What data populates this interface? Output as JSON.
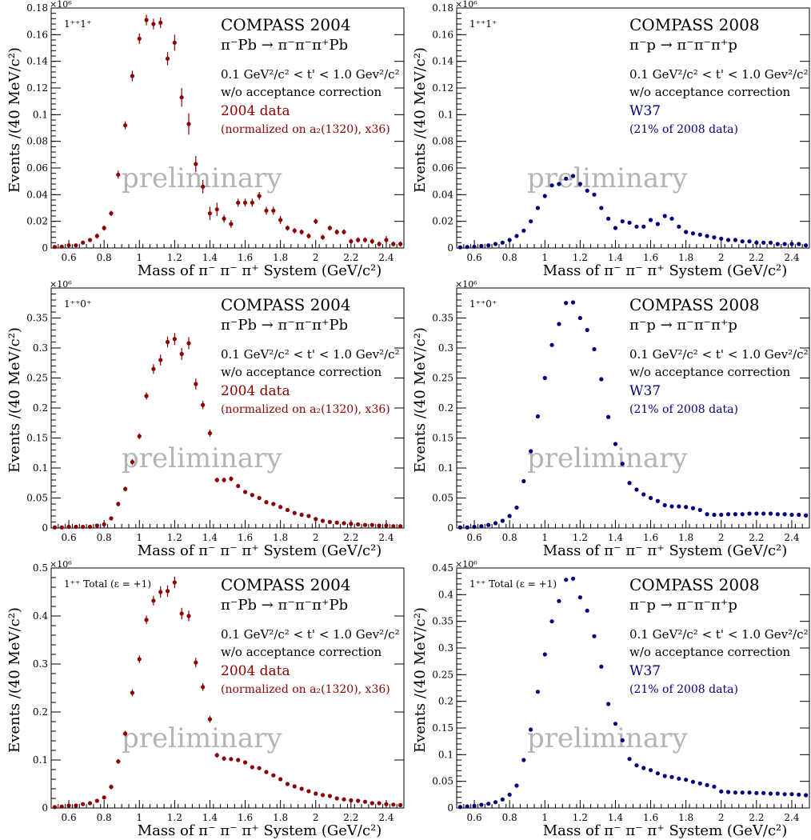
{
  "chart_data": [
    {
      "type": "scatter",
      "panel": "left-top",
      "experiment": "COMPASS 2004",
      "wave_label": "1⁺⁺1⁺",
      "reaction": "π⁻Pb → π⁻π⁻π⁺Pb",
      "cut": "0.1 GeV²/c² < t' < 1.0 Gev²/c²",
      "correction_note": "w/o acceptance correction",
      "dataset": "2004 data",
      "normalization_note": "(normalized on a₂(1320), x36)",
      "watermark": "preliminary",
      "xlabel": "Mass of π⁻ π⁻ π⁺ System (GeV/c²)",
      "ylabel": "Events /(40 MeV/c²)",
      "y_multiplier": "×10⁶",
      "xlim": [
        0.5,
        2.5
      ],
      "ylim": [
        0,
        0.18
      ],
      "xticks": [
        0.6,
        0.8,
        1,
        1.2,
        1.4,
        1.6,
        1.8,
        2,
        2.2,
        2.4
      ],
      "yticks": [
        0,
        0.02,
        0.04,
        0.06,
        0.08,
        0.1,
        0.12,
        0.14,
        0.16,
        0.18
      ],
      "color": "#8b0000",
      "x": [
        0.52,
        0.56,
        0.6,
        0.64,
        0.68,
        0.72,
        0.76,
        0.8,
        0.84,
        0.88,
        0.92,
        0.96,
        1.0,
        1.04,
        1.08,
        1.12,
        1.16,
        1.2,
        1.24,
        1.28,
        1.32,
        1.36,
        1.4,
        1.44,
        1.48,
        1.52,
        1.56,
        1.6,
        1.64,
        1.68,
        1.72,
        1.76,
        1.8,
        1.84,
        1.88,
        1.92,
        1.96,
        2.0,
        2.04,
        2.08,
        2.12,
        2.16,
        2.2,
        2.24,
        2.28,
        2.32,
        2.36,
        2.4,
        2.44,
        2.48
      ],
      "y": [
        0.0008,
        0.001,
        0.002,
        0.002,
        0.004,
        0.006,
        0.009,
        0.015,
        0.026,
        0.055,
        0.092,
        0.129,
        0.157,
        0.171,
        0.168,
        0.169,
        0.142,
        0.154,
        0.113,
        0.093,
        0.063,
        0.046,
        0.026,
        0.029,
        0.022,
        0.018,
        0.034,
        0.034,
        0.034,
        0.039,
        0.028,
        0.028,
        0.021,
        0.015,
        0.013,
        0.012,
        0.009,
        0.02,
        0.008,
        0.015,
        0.012,
        0.012,
        0.005,
        0.006,
        0.006,
        0.005,
        0.003,
        0.006,
        0.003,
        0.003
      ],
      "yerr": [
        0.0008,
        0.001,
        0.001,
        0.001,
        0.0015,
        0.0015,
        0.002,
        0.002,
        0.002,
        0.003,
        0.003,
        0.004,
        0.004,
        0.004,
        0.004,
        0.004,
        0.005,
        0.006,
        0.007,
        0.008,
        0.006,
        0.005,
        0.005,
        0.005,
        0.003,
        0.003,
        0.003,
        0.003,
        0.003,
        0.003,
        0.003,
        0.003,
        0.003,
        0.002,
        0.002,
        0.002,
        0.002,
        0.002,
        0.002,
        0.002,
        0.002,
        0.002,
        0.002,
        0.002,
        0.002,
        0.002,
        0.002,
        0.003,
        0.002,
        0.002
      ]
    },
    {
      "type": "scatter",
      "panel": "right-top",
      "experiment": "COMPASS 2008",
      "wave_label": "1⁺⁺1⁺",
      "reaction": "π⁻p → π⁻π⁻π⁺p",
      "cut": "0.1 GeV²/c² < t' < 1.0 Gev²/c²",
      "correction_note": "w/o acceptance correction",
      "dataset": "W37",
      "normalization_note": "(21% of 2008 data)",
      "watermark": "preliminary",
      "xlabel": "Mass of π⁻ π⁻ π⁺ System (GeV/c²)",
      "ylabel": "Events /(40 MeV/c²)",
      "y_multiplier": "×10⁶",
      "xlim": [
        0.5,
        2.5
      ],
      "ylim": [
        0,
        0.18
      ],
      "xticks": [
        0.6,
        0.8,
        1,
        1.2,
        1.4,
        1.6,
        1.8,
        2,
        2.2,
        2.4
      ],
      "yticks": [
        0,
        0.02,
        0.04,
        0.06,
        0.08,
        0.1,
        0.12,
        0.14,
        0.16,
        0.18
      ],
      "color": "#00007a",
      "x": [
        0.52,
        0.56,
        0.6,
        0.64,
        0.68,
        0.72,
        0.76,
        0.8,
        0.84,
        0.88,
        0.92,
        0.96,
        1.0,
        1.04,
        1.08,
        1.12,
        1.16,
        1.2,
        1.24,
        1.28,
        1.32,
        1.36,
        1.4,
        1.44,
        1.48,
        1.52,
        1.56,
        1.6,
        1.64,
        1.68,
        1.72,
        1.76,
        1.8,
        1.84,
        1.88,
        1.92,
        1.96,
        2.0,
        2.04,
        2.08,
        2.12,
        2.16,
        2.2,
        2.24,
        2.28,
        2.32,
        2.36,
        2.4,
        2.44,
        2.48
      ],
      "y": [
        0.0005,
        0.0008,
        0.001,
        0.0015,
        0.002,
        0.003,
        0.004,
        0.006,
        0.009,
        0.013,
        0.02,
        0.03,
        0.039,
        0.047,
        0.048,
        0.052,
        0.054,
        0.048,
        0.043,
        0.04,
        0.03,
        0.022,
        0.015,
        0.02,
        0.019,
        0.016,
        0.016,
        0.021,
        0.018,
        0.024,
        0.022,
        0.016,
        0.012,
        0.011,
        0.01,
        0.009,
        0.008,
        0.007,
        0.006,
        0.006,
        0.005,
        0.005,
        0.004,
        0.004,
        0.004,
        0.003,
        0.003,
        0.003,
        0.003,
        0.002
      ],
      "yerr": [
        0.0003,
        0.0003,
        0.0004,
        0.0004,
        0.0005,
        0.0005,
        0.0006,
        0.0006,
        0.0007,
        0.0008,
        0.0008,
        0.0009,
        0.001,
        0.001,
        0.001,
        0.001,
        0.001,
        0.001,
        0.001,
        0.001,
        0.001,
        0.001,
        0.001,
        0.001,
        0.001,
        0.001,
        0.001,
        0.001,
        0.001,
        0.001,
        0.001,
        0.001,
        0.001,
        0.001,
        0.001,
        0.001,
        0.001,
        0.001,
        0.001,
        0.001,
        0.001,
        0.001,
        0.001,
        0.001,
        0.001,
        0.001,
        0.001,
        0.001,
        0.001,
        0.001
      ]
    },
    {
      "type": "scatter",
      "panel": "left-middle",
      "experiment": "COMPASS 2004",
      "wave_label": "1⁺⁺0⁺",
      "reaction": "π⁻Pb → π⁻π⁻π⁺Pb",
      "cut": "0.1 GeV²/c² < t' < 1.0 Gev²/c²",
      "correction_note": "w/o acceptance correction",
      "dataset": "2004 data",
      "normalization_note": "(normalized on a₂(1320), x36)",
      "watermark": "preliminary",
      "xlabel": "Mass of π⁻ π⁻ π⁺ System (GeV/c²)",
      "ylabel": "Events /(40 MeV/c²)",
      "y_multiplier": "×10⁶",
      "xlim": [
        0.5,
        2.5
      ],
      "ylim": [
        0,
        0.4
      ],
      "xticks": [
        0.6,
        0.8,
        1,
        1.2,
        1.4,
        1.6,
        1.8,
        2,
        2.2,
        2.4
      ],
      "yticks": [
        0,
        0.05,
        0.1,
        0.15,
        0.2,
        0.25,
        0.3,
        0.35
      ],
      "color": "#8b0000",
      "x": [
        0.52,
        0.56,
        0.6,
        0.64,
        0.68,
        0.72,
        0.76,
        0.8,
        0.84,
        0.88,
        0.92,
        0.96,
        1.0,
        1.04,
        1.08,
        1.12,
        1.16,
        1.2,
        1.24,
        1.28,
        1.32,
        1.36,
        1.4,
        1.44,
        1.48,
        1.52,
        1.56,
        1.6,
        1.64,
        1.68,
        1.72,
        1.76,
        1.8,
        1.84,
        1.88,
        1.92,
        1.96,
        2.0,
        2.04,
        2.08,
        2.12,
        2.16,
        2.2,
        2.24,
        2.28,
        2.32,
        2.36,
        2.4,
        2.44,
        2.48
      ],
      "y": [
        0.001,
        0.001,
        0.002,
        0.002,
        0.002,
        0.002,
        0.004,
        0.006,
        0.016,
        0.04,
        0.065,
        0.11,
        0.153,
        0.22,
        0.265,
        0.28,
        0.31,
        0.315,
        0.29,
        0.308,
        0.24,
        0.205,
        0.158,
        0.08,
        0.08,
        0.082,
        0.07,
        0.06,
        0.055,
        0.05,
        0.043,
        0.04,
        0.035,
        0.03,
        0.025,
        0.022,
        0.02,
        0.015,
        0.012,
        0.01,
        0.009,
        0.008,
        0.007,
        0.006,
        0.005,
        0.005,
        0.004,
        0.004,
        0.003,
        0.003
      ],
      "yerr": [
        0.001,
        0.001,
        0.002,
        0.002,
        0.002,
        0.002,
        0.002,
        0.003,
        0.003,
        0.004,
        0.004,
        0.005,
        0.005,
        0.006,
        0.008,
        0.009,
        0.009,
        0.01,
        0.01,
        0.01,
        0.009,
        0.007,
        0.006,
        0.004,
        0.004,
        0.004,
        0.003,
        0.003,
        0.003,
        0.003,
        0.003,
        0.003,
        0.003,
        0.002,
        0.002,
        0.002,
        0.002,
        0.002,
        0.002,
        0.002,
        0.002,
        0.002,
        0.002,
        0.002,
        0.002,
        0.002,
        0.002,
        0.002,
        0.002,
        0.002
      ]
    },
    {
      "type": "scatter",
      "panel": "right-middle",
      "experiment": "COMPASS 2008",
      "wave_label": "1⁺⁺0⁺",
      "reaction": "π⁻p → π⁻π⁻π⁺p",
      "cut": "0.1 GeV²/c² < t' < 1.0 Gev²/c²",
      "correction_note": "w/o acceptance correction",
      "dataset": "W37",
      "normalization_note": "(21% of 2008 data)",
      "watermark": "preliminary",
      "xlabel": "Mass of π⁻ π⁻ π⁺ System (GeV/c²)",
      "ylabel": "Events /(40 MeV/c²)",
      "y_multiplier": "×10⁶",
      "xlim": [
        0.5,
        2.5
      ],
      "ylim": [
        0,
        0.4
      ],
      "xticks": [
        0.6,
        0.8,
        1,
        1.2,
        1.4,
        1.6,
        1.8,
        2,
        2.2,
        2.4
      ],
      "yticks": [
        0,
        0.05,
        0.1,
        0.15,
        0.2,
        0.25,
        0.3,
        0.35
      ],
      "color": "#00007a",
      "x": [
        0.52,
        0.56,
        0.6,
        0.64,
        0.68,
        0.72,
        0.76,
        0.8,
        0.84,
        0.88,
        0.92,
        0.96,
        1.0,
        1.04,
        1.08,
        1.12,
        1.16,
        1.2,
        1.24,
        1.28,
        1.32,
        1.36,
        1.4,
        1.44,
        1.48,
        1.52,
        1.56,
        1.6,
        1.64,
        1.68,
        1.72,
        1.76,
        1.8,
        1.84,
        1.88,
        1.92,
        1.96,
        2.0,
        2.04,
        2.08,
        2.12,
        2.16,
        2.2,
        2.24,
        2.28,
        2.32,
        2.36,
        2.4,
        2.44,
        2.48
      ],
      "y": [
        0.001,
        0.001,
        0.002,
        0.003,
        0.005,
        0.008,
        0.012,
        0.02,
        0.034,
        0.078,
        0.128,
        0.186,
        0.25,
        0.305,
        0.34,
        0.375,
        0.376,
        0.35,
        0.33,
        0.298,
        0.248,
        0.185,
        0.14,
        0.107,
        0.075,
        0.064,
        0.056,
        0.05,
        0.045,
        0.038,
        0.036,
        0.036,
        0.035,
        0.033,
        0.03,
        0.023,
        0.022,
        0.022,
        0.023,
        0.023,
        0.023,
        0.024,
        0.024,
        0.024,
        0.024,
        0.023,
        0.023,
        0.022,
        0.022,
        0.021
      ],
      "yerr": [
        0.0005,
        0.0005,
        0.0006,
        0.0007,
        0.0008,
        0.001,
        0.001,
        0.001,
        0.001,
        0.002,
        0.002,
        0.002,
        0.002,
        0.003,
        0.003,
        0.003,
        0.003,
        0.003,
        0.003,
        0.003,
        0.003,
        0.003,
        0.002,
        0.002,
        0.002,
        0.001,
        0.001,
        0.001,
        0.001,
        0.001,
        0.001,
        0.001,
        0.001,
        0.001,
        0.001,
        0.001,
        0.001,
        0.001,
        0.001,
        0.001,
        0.001,
        0.001,
        0.001,
        0.001,
        0.001,
        0.001,
        0.001,
        0.001,
        0.001,
        0.001
      ]
    },
    {
      "type": "scatter",
      "panel": "left-bottom",
      "experiment": "COMPASS 2004",
      "wave_label": "1⁺⁺ Total (ε = +1)",
      "reaction": "π⁻Pb → π⁻π⁻π⁺Pb",
      "cut": "0.1 GeV²/c² < t' < 1.0 Gev²/c²",
      "correction_note": "w/o acceptance correction",
      "dataset": "2004 data",
      "normalization_note": "(normalized on a₂(1320), x36)",
      "watermark": "preliminary",
      "xlabel": "Mass of π⁻ π⁻ π⁺ System (GeV/c²)",
      "ylabel": "Events /(40 MeV/c²)",
      "y_multiplier": "×10⁶",
      "xlim": [
        0.5,
        2.5
      ],
      "ylim": [
        0,
        0.5
      ],
      "xticks": [
        0.6,
        0.8,
        1,
        1.2,
        1.4,
        1.6,
        1.8,
        2,
        2.2,
        2.4
      ],
      "yticks": [
        0,
        0.1,
        0.2,
        0.3,
        0.4,
        0.5
      ],
      "color": "#8b0000",
      "x": [
        0.52,
        0.56,
        0.6,
        0.64,
        0.68,
        0.72,
        0.76,
        0.8,
        0.84,
        0.88,
        0.92,
        0.96,
        1.0,
        1.04,
        1.08,
        1.12,
        1.16,
        1.2,
        1.24,
        1.28,
        1.32,
        1.36,
        1.4,
        1.44,
        1.48,
        1.52,
        1.56,
        1.6,
        1.64,
        1.68,
        1.72,
        1.76,
        1.8,
        1.84,
        1.88,
        1.92,
        1.96,
        2.0,
        2.04,
        2.08,
        2.12,
        2.16,
        2.2,
        2.24,
        2.28,
        2.32,
        2.36,
        2.4,
        2.44,
        2.48
      ],
      "y": [
        0.002,
        0.003,
        0.005,
        0.005,
        0.008,
        0.01,
        0.015,
        0.022,
        0.044,
        0.097,
        0.155,
        0.24,
        0.31,
        0.392,
        0.432,
        0.45,
        0.452,
        0.47,
        0.405,
        0.4,
        0.303,
        0.252,
        0.185,
        0.11,
        0.103,
        0.102,
        0.1,
        0.095,
        0.085,
        0.083,
        0.075,
        0.068,
        0.06,
        0.05,
        0.045,
        0.04,
        0.035,
        0.03,
        0.027,
        0.025,
        0.02,
        0.018,
        0.016,
        0.015,
        0.013,
        0.01,
        0.01,
        0.008,
        0.007,
        0.006
      ],
      "yerr": [
        0.002,
        0.002,
        0.002,
        0.002,
        0.003,
        0.003,
        0.003,
        0.004,
        0.005,
        0.005,
        0.006,
        0.007,
        0.008,
        0.009,
        0.01,
        0.012,
        0.012,
        0.012,
        0.012,
        0.011,
        0.01,
        0.008,
        0.007,
        0.005,
        0.005,
        0.004,
        0.004,
        0.004,
        0.004,
        0.004,
        0.003,
        0.003,
        0.003,
        0.003,
        0.003,
        0.003,
        0.003,
        0.003,
        0.003,
        0.003,
        0.002,
        0.002,
        0.002,
        0.002,
        0.002,
        0.002,
        0.002,
        0.002,
        0.002,
        0.002
      ]
    },
    {
      "type": "scatter",
      "panel": "right-bottom",
      "experiment": "COMPASS 2008",
      "wave_label": "1⁺⁺ Total (ε = +1)",
      "reaction": "π⁻p → π⁻π⁻π⁺p",
      "cut": "0.1 GeV²/c² < t' < 1.0 Gev²/c²",
      "correction_note": "w/o acceptance correction",
      "dataset": "W37",
      "normalization_note": "(21% of 2008 data)",
      "watermark": "preliminary",
      "xlabel": "Mass of π⁻ π⁻ π⁺ System (GeV/c²)",
      "ylabel": "Events /(40 MeV/c²)",
      "y_multiplier": "×10⁶",
      "xlim": [
        0.5,
        2.5
      ],
      "ylim": [
        0,
        0.45
      ],
      "xticks": [
        0.6,
        0.8,
        1,
        1.2,
        1.4,
        1.6,
        1.8,
        2,
        2.2,
        2.4
      ],
      "yticks": [
        0,
        0.05,
        0.1,
        0.15,
        0.2,
        0.25,
        0.3,
        0.35,
        0.4,
        0.45
      ],
      "color": "#00007a",
      "x": [
        0.52,
        0.56,
        0.6,
        0.64,
        0.68,
        0.72,
        0.76,
        0.8,
        0.84,
        0.88,
        0.92,
        0.96,
        1.0,
        1.04,
        1.08,
        1.12,
        1.16,
        1.2,
        1.24,
        1.28,
        1.32,
        1.36,
        1.4,
        1.44,
        1.48,
        1.52,
        1.56,
        1.6,
        1.64,
        1.68,
        1.72,
        1.76,
        1.8,
        1.84,
        1.88,
        1.92,
        1.96,
        2.0,
        2.04,
        2.08,
        2.12,
        2.16,
        2.2,
        2.24,
        2.28,
        2.32,
        2.36,
        2.4,
        2.44,
        2.48
      ],
      "y": [
        0.002,
        0.003,
        0.004,
        0.006,
        0.008,
        0.011,
        0.016,
        0.025,
        0.042,
        0.09,
        0.147,
        0.218,
        0.288,
        0.35,
        0.388,
        0.428,
        0.43,
        0.395,
        0.37,
        0.322,
        0.265,
        0.195,
        0.158,
        0.127,
        0.092,
        0.08,
        0.075,
        0.071,
        0.065,
        0.06,
        0.058,
        0.055,
        0.053,
        0.049,
        0.046,
        0.043,
        0.04,
        0.031,
        0.03,
        0.029,
        0.029,
        0.029,
        0.028,
        0.028,
        0.027,
        0.027,
        0.026,
        0.026,
        0.025,
        0.024
      ],
      "yerr": [
        0.0005,
        0.0006,
        0.0007,
        0.0008,
        0.001,
        0.001,
        0.001,
        0.001,
        0.002,
        0.002,
        0.002,
        0.003,
        0.003,
        0.003,
        0.003,
        0.003,
        0.003,
        0.003,
        0.003,
        0.003,
        0.003,
        0.003,
        0.002,
        0.002,
        0.002,
        0.002,
        0.001,
        0.001,
        0.001,
        0.001,
        0.001,
        0.001,
        0.001,
        0.001,
        0.001,
        0.001,
        0.001,
        0.001,
        0.001,
        0.001,
        0.001,
        0.001,
        0.001,
        0.001,
        0.001,
        0.001,
        0.001,
        0.001,
        0.001,
        0.001
      ]
    }
  ]
}
